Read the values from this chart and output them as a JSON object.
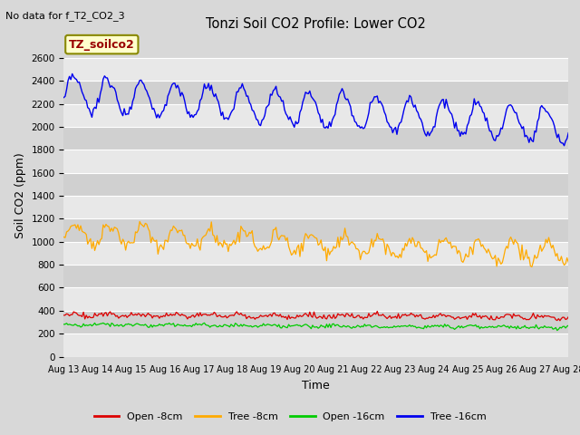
{
  "title": "Tonzi Soil CO2 Profile: Lower CO2",
  "no_data_text": "No data for f_T2_CO2_3",
  "legend_box_text": "TZ_soilco2",
  "xlabel": "Time",
  "ylabel": "Soil CO2 (ppm)",
  "ylim": [
    0,
    2800
  ],
  "yticks": [
    0,
    200,
    400,
    600,
    800,
    1000,
    1200,
    1400,
    1600,
    1800,
    2000,
    2200,
    2400,
    2600
  ],
  "background_color": "#d8d8d8",
  "plot_bg_color": "#d8d8d8",
  "band_light": "#e8e8e8",
  "band_dark": "#d0d0d0",
  "grid_color": "#ffffff",
  "colors": {
    "open_8cm": "#dd0000",
    "tree_8cm": "#ffaa00",
    "open_16cm": "#00cc00",
    "tree_16cm": "#0000ee"
  },
  "legend_labels": [
    "Open -8cm",
    "Tree -8cm",
    "Open -16cm",
    "Tree -16cm"
  ],
  "legend_box_facecolor": "#ffffcc",
  "legend_box_edgecolor": "#888800",
  "legend_box_textcolor": "#990000"
}
